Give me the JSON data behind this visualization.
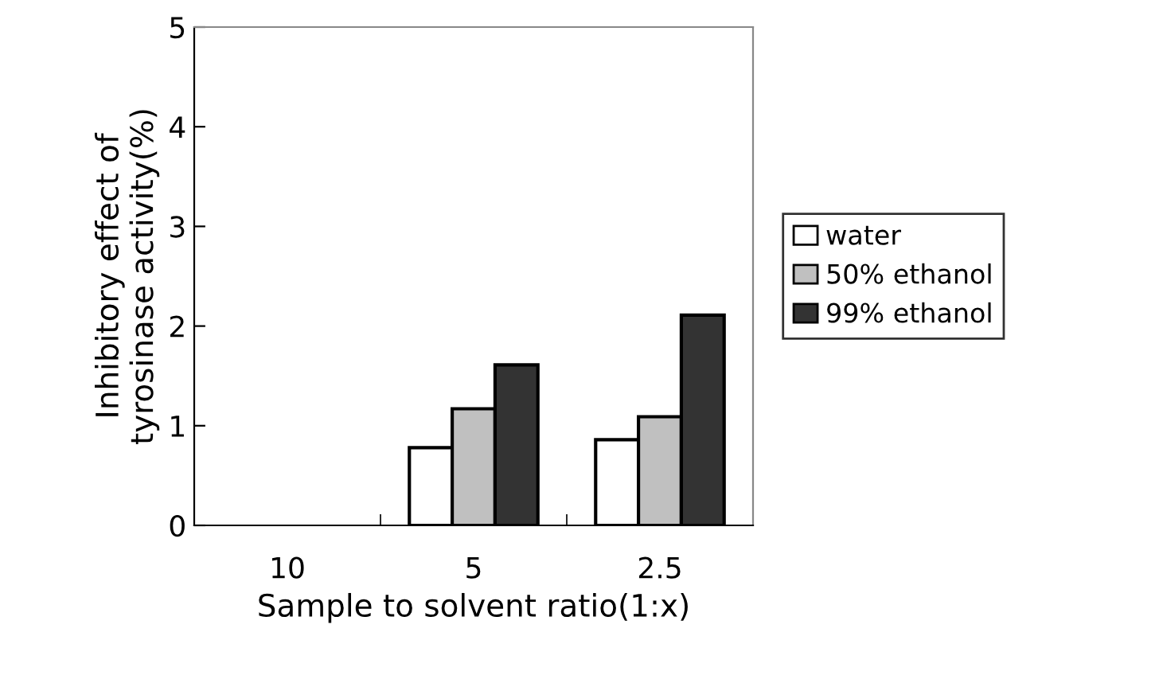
{
  "chart_data": {
    "type": "bar",
    "xlabel": "Sample to solvent ratio(1:x)",
    "ylabel": "Inhibitory effect of\ntyrosinase activity(%)",
    "categories": [
      "10",
      "5",
      "2.5"
    ],
    "series": [
      {
        "name": "water",
        "color": "#ffffff",
        "values": [
          null,
          0.78,
          0.86
        ]
      },
      {
        "name": "50% ethanol",
        "color": "#c0c0c0",
        "values": [
          null,
          1.17,
          1.09
        ]
      },
      {
        "name": "99% ethanol",
        "color": "#333333",
        "values": [
          null,
          1.61,
          2.11
        ]
      }
    ],
    "ylim": [
      0,
      5
    ],
    "yticks": [
      0,
      1,
      2,
      3,
      4,
      5
    ],
    "grid": false,
    "legend": "right"
  }
}
